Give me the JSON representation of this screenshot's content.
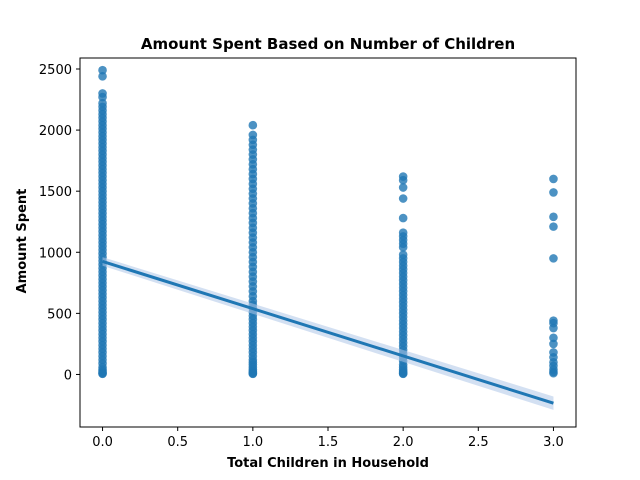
{
  "chart_data": {
    "type": "scatter",
    "title": "Amount Spent Based on Number of Children",
    "xlabel": "Total Children in Household",
    "ylabel": "Amount Spent",
    "xlim": [
      -0.15,
      3.15
    ],
    "ylim": [
      -430,
      2590
    ],
    "xticks": [
      "0.0",
      "0.5",
      "1.0",
      "1.5",
      "2.0",
      "2.5",
      "3.0"
    ],
    "xtick_values": [
      0,
      0.5,
      1.0,
      1.5,
      2.0,
      2.5,
      3.0
    ],
    "yticks": [
      "0",
      "500",
      "1000",
      "1500",
      "2000",
      "2500"
    ],
    "ytick_values": [
      0,
      500,
      1000,
      1500,
      2000,
      2500
    ],
    "grid": false,
    "point_color": "#1f77b4",
    "line_color": "#1f77b4",
    "band_color": "#aec7e8",
    "points": {
      "0": [
        2490,
        2440,
        2300,
        2270,
        2220,
        2190,
        2160,
        2130,
        2100,
        2070,
        2040,
        2010,
        1980,
        1950,
        1920,
        1890,
        1860,
        1830,
        1800,
        1770,
        1740,
        1710,
        1680,
        1650,
        1620,
        1590,
        1560,
        1530,
        1500,
        1470,
        1440,
        1410,
        1380,
        1350,
        1320,
        1290,
        1260,
        1230,
        1200,
        1170,
        1140,
        1110,
        1080,
        1050,
        1020,
        990,
        960,
        930,
        900,
        870,
        840,
        810,
        780,
        750,
        720,
        690,
        660,
        630,
        600,
        570,
        540,
        510,
        480,
        450,
        420,
        390,
        360,
        330,
        300,
        270,
        240,
        210,
        180,
        150,
        120,
        90,
        60,
        40,
        25,
        15,
        8,
        5
      ],
      "1": [
        2040,
        1960,
        1920,
        1880,
        1840,
        1800,
        1760,
        1720,
        1680,
        1640,
        1600,
        1560,
        1520,
        1480,
        1440,
        1400,
        1360,
        1320,
        1280,
        1240,
        1200,
        1160,
        1120,
        1080,
        1040,
        1000,
        960,
        920,
        880,
        840,
        800,
        760,
        720,
        680,
        640,
        600,
        570,
        540,
        510,
        480,
        450,
        420,
        390,
        360,
        330,
        300,
        270,
        240,
        210,
        180,
        150,
        120,
        100,
        80,
        60,
        40,
        25,
        15,
        8,
        5
      ],
      "2": [
        1620,
        1590,
        1530,
        1440,
        1280,
        1160,
        1130,
        1100,
        1070,
        1040,
        980,
        950,
        920,
        890,
        860,
        830,
        800,
        770,
        740,
        710,
        680,
        650,
        620,
        590,
        560,
        530,
        500,
        470,
        440,
        410,
        380,
        350,
        320,
        290,
        260,
        230,
        200,
        170,
        140,
        110,
        80,
        60,
        40,
        25,
        15,
        8,
        5
      ],
      "3": [
        1600,
        1490,
        1290,
        1210,
        950,
        440,
        420,
        380,
        300,
        250,
        180,
        140,
        100,
        70,
        40,
        20,
        10
      ]
    },
    "regression": {
      "x": [
        0,
        3.0
      ],
      "y": [
        925,
        -235
      ],
      "ci_halfwidth": [
        35,
        55
      ]
    }
  }
}
